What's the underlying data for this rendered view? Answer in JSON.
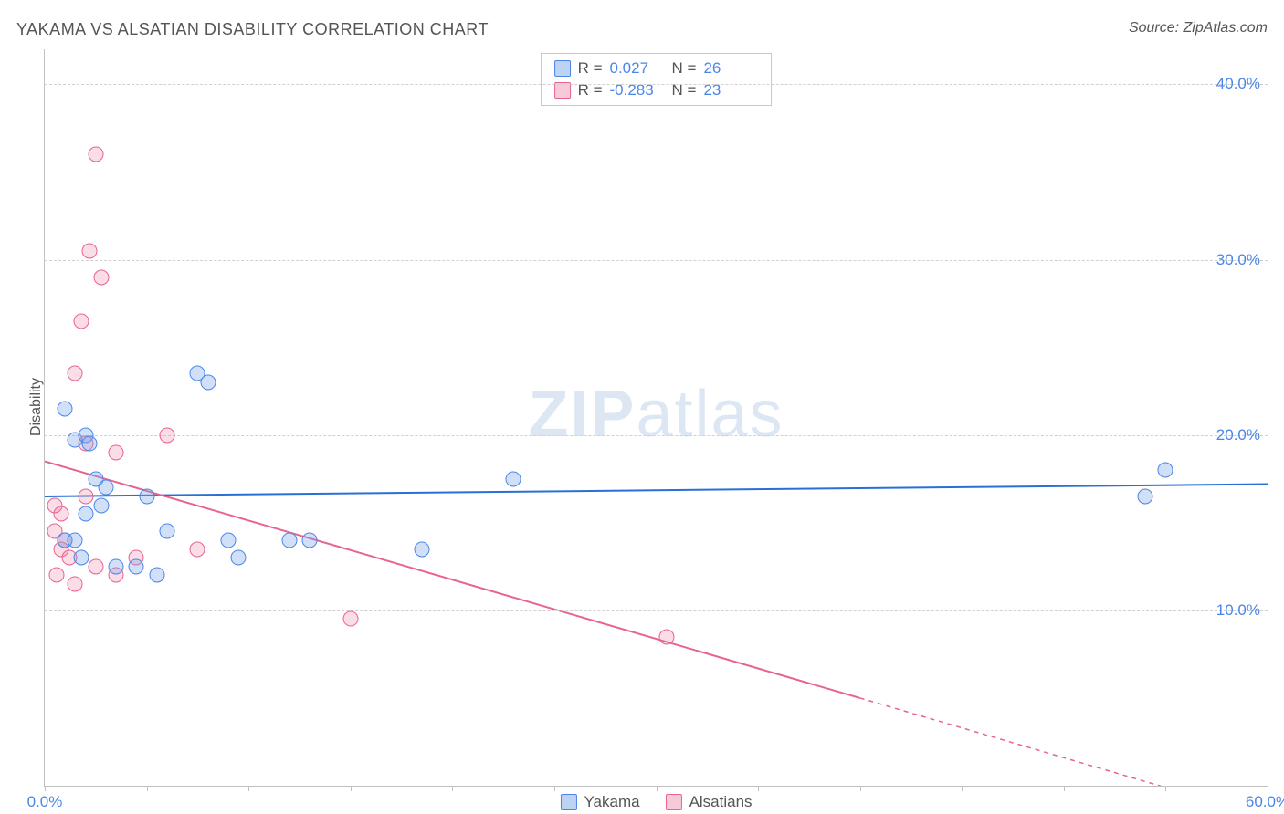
{
  "title": "YAKAMA VS ALSATIAN DISABILITY CORRELATION CHART",
  "source": "Source: ZipAtlas.com",
  "ylabel": "Disability",
  "watermark_bold": "ZIP",
  "watermark_rest": "atlas",
  "chart": {
    "type": "scatter",
    "xlim": [
      0,
      60
    ],
    "ylim": [
      0,
      42
    ],
    "yticks": [
      10,
      20,
      30,
      40
    ],
    "ytick_labels": [
      "10.0%",
      "20.0%",
      "30.0%",
      "40.0%"
    ],
    "xticks": [
      0,
      5,
      10,
      15,
      20,
      25,
      30,
      35,
      40,
      45,
      50,
      55,
      60
    ],
    "xtick_labels_shown": {
      "0": "0.0%",
      "60": "60.0%"
    },
    "background_color": "#ffffff",
    "grid_color": "#d0d0d0",
    "axis_color": "#c0c0c0",
    "tick_label_color": "#4a86e8",
    "title_color": "#555555",
    "title_fontsize": 18,
    "label_fontsize": 16,
    "tick_fontsize": 17,
    "marker_size": 17,
    "series": {
      "yakama": {
        "label": "Yakama",
        "color_fill": "rgba(122,167,232,0.35)",
        "color_border": "#4a86e8",
        "R": "0.027",
        "N": "26",
        "trend": {
          "y_at_x0": 16.5,
          "y_at_xmax": 17.2,
          "line_color": "#2a6fd6",
          "line_width": 2
        },
        "points": [
          {
            "x": 1.0,
            "y": 21.5
          },
          {
            "x": 1.5,
            "y": 19.7
          },
          {
            "x": 2.0,
            "y": 20.0
          },
          {
            "x": 2.2,
            "y": 19.5
          },
          {
            "x": 2.5,
            "y": 17.5
          },
          {
            "x": 3.0,
            "y": 17.0
          },
          {
            "x": 2.0,
            "y": 15.5
          },
          {
            "x": 1.0,
            "y": 14.0
          },
          {
            "x": 1.5,
            "y": 14.0
          },
          {
            "x": 1.8,
            "y": 13.0
          },
          {
            "x": 3.5,
            "y": 12.5
          },
          {
            "x": 4.5,
            "y": 12.5
          },
          {
            "x": 5.5,
            "y": 12.0
          },
          {
            "x": 7.5,
            "y": 23.5
          },
          {
            "x": 8.0,
            "y": 23.0
          },
          {
            "x": 5.0,
            "y": 16.5
          },
          {
            "x": 9.0,
            "y": 14.0
          },
          {
            "x": 9.5,
            "y": 13.0
          },
          {
            "x": 12.0,
            "y": 14.0
          },
          {
            "x": 13.0,
            "y": 14.0
          },
          {
            "x": 18.5,
            "y": 13.5
          },
          {
            "x": 23.0,
            "y": 17.5
          },
          {
            "x": 55.0,
            "y": 18.0
          },
          {
            "x": 54.0,
            "y": 16.5
          },
          {
            "x": 2.8,
            "y": 16.0
          },
          {
            "x": 6.0,
            "y": 14.5
          }
        ]
      },
      "alsatians": {
        "label": "Alsatians",
        "color_fill": "rgba(235,120,160,0.25)",
        "color_border": "#e8638f",
        "R": "-0.283",
        "N": "23",
        "trend": {
          "y_at_x0": 18.5,
          "y_at_solid_end_x": 40,
          "y_at_solid_end": 5.0,
          "y_at_xmax": -1.8,
          "line_color": "#e8638f",
          "line_width": 2
        },
        "points": [
          {
            "x": 2.5,
            "y": 36.0
          },
          {
            "x": 2.2,
            "y": 30.5
          },
          {
            "x": 2.8,
            "y": 29.0
          },
          {
            "x": 1.8,
            "y": 26.5
          },
          {
            "x": 1.5,
            "y": 23.5
          },
          {
            "x": 2.0,
            "y": 19.5
          },
          {
            "x": 3.5,
            "y": 19.0
          },
          {
            "x": 6.0,
            "y": 20.0
          },
          {
            "x": 0.5,
            "y": 16.0
          },
          {
            "x": 0.8,
            "y": 15.5
          },
          {
            "x": 0.5,
            "y": 14.5
          },
          {
            "x": 1.0,
            "y": 14.0
          },
          {
            "x": 0.8,
            "y": 13.5
          },
          {
            "x": 1.2,
            "y": 13.0
          },
          {
            "x": 0.6,
            "y": 12.0
          },
          {
            "x": 1.5,
            "y": 11.5
          },
          {
            "x": 2.5,
            "y": 12.5
          },
          {
            "x": 3.5,
            "y": 12.0
          },
          {
            "x": 4.5,
            "y": 13.0
          },
          {
            "x": 7.5,
            "y": 13.5
          },
          {
            "x": 15.0,
            "y": 9.5
          },
          {
            "x": 30.5,
            "y": 8.5
          },
          {
            "x": 2.0,
            "y": 16.5
          }
        ]
      }
    }
  },
  "topbox": {
    "r_label": "R =",
    "n_label": "N ="
  }
}
